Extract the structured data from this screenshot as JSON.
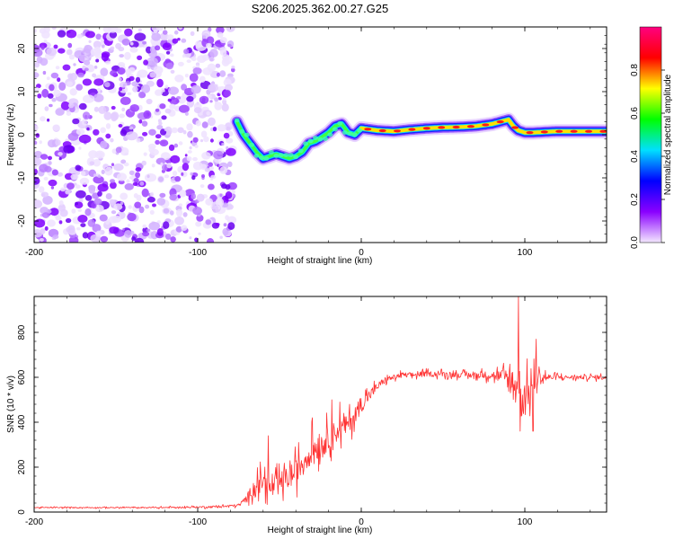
{
  "title": "S206.2025.362.00.27.G25",
  "chart_data": [
    {
      "type": "heatmap",
      "title": "",
      "xlabel": "Height of straight line (km)",
      "ylabel": "Frequency (Hz)",
      "xlim": [
        -200,
        150
      ],
      "ylim": [
        -25,
        25
      ],
      "xticks": [
        -200,
        -100,
        0,
        100
      ],
      "yticks": [
        -20,
        -10,
        0,
        10,
        20
      ],
      "noise_region_x": [
        -200,
        -78
      ],
      "ridge": {
        "x": [
          -76,
          -72,
          -68,
          -64,
          -60,
          -56,
          -52,
          -48,
          -44,
          -40,
          -36,
          -32,
          -28,
          -24,
          -20,
          -16,
          -12,
          -8,
          -4,
          0,
          10,
          20,
          30,
          40,
          50,
          60,
          70,
          80,
          85,
          90,
          93,
          96,
          100,
          105,
          110,
          120,
          130,
          140,
          150
        ],
        "y": [
          3,
          0,
          -2,
          -4,
          -5.5,
          -5,
          -4.5,
          -5,
          -5.5,
          -5,
          -4,
          -2,
          -1.5,
          -0.5,
          0.5,
          2,
          2.5,
          0.5,
          0,
          1.5,
          1,
          0.8,
          1.2,
          1.5,
          1.7,
          1.8,
          2,
          2.5,
          3,
          3.5,
          2,
          1,
          0.5,
          0.5,
          0.6,
          0.8,
          0.8,
          0.8,
          0.8
        ],
        "peak_amplitude_from_x": 0
      },
      "colorbar": {
        "label": "Normalized spectral amplitude",
        "range": [
          0,
          1
        ],
        "ticks": [
          "0.0",
          "0.2",
          "0.4",
          "0.6",
          "0.8"
        ],
        "colors": [
          "#f4e8ff",
          "#8a00ff",
          "#0000ff",
          "#00e0ff",
          "#00ff00",
          "#ffff00",
          "#ff0000",
          "#ff0080"
        ]
      }
    },
    {
      "type": "line",
      "title": "",
      "xlabel": "Height of straight line (km)",
      "ylabel": "SNR (10 * v/v)",
      "xlim": [
        -200,
        150
      ],
      "ylim": [
        0,
        960
      ],
      "xticks": [
        -200,
        -100,
        0,
        100
      ],
      "yticks": [
        0,
        200,
        400,
        600,
        800
      ],
      "color": "#ff3333",
      "series": [
        {
          "name": "SNR",
          "x": [
            -200,
            -180,
            -160,
            -140,
            -120,
            -100,
            -85,
            -75,
            -70,
            -65,
            -60,
            -55,
            -50,
            -45,
            -40,
            -35,
            -30,
            -25,
            -20,
            -15,
            -10,
            -5,
            0,
            5,
            10,
            15,
            20,
            25,
            30,
            40,
            50,
            60,
            70,
            80,
            88,
            92,
            95,
            97,
            100,
            104,
            108,
            115,
            125,
            135,
            150
          ],
          "y": [
            20,
            20,
            20,
            20,
            20,
            22,
            25,
            30,
            60,
            120,
            140,
            100,
            130,
            150,
            180,
            230,
            280,
            300,
            330,
            360,
            380,
            420,
            480,
            520,
            560,
            590,
            600,
            610,
            610,
            615,
            615,
            610,
            610,
            610,
            600,
            580,
            560,
            520,
            500,
            560,
            600,
            600,
            600,
            600,
            600
          ],
          "amplitude": [
            5,
            5,
            5,
            5,
            6,
            8,
            10,
            12,
            40,
            80,
            100,
            90,
            100,
            110,
            120,
            130,
            130,
            130,
            120,
            110,
            100,
            90,
            80,
            60,
            40,
            30,
            25,
            25,
            25,
            25,
            25,
            25,
            30,
            40,
            80,
            160,
            260,
            280,
            180,
            140,
            80,
            30,
            20,
            20,
            20
          ],
          "spikes": [
            {
              "x": -57,
              "y": 340
            },
            {
              "x": -30,
              "y": 420
            },
            {
              "x": -18,
              "y": 500
            },
            {
              "x": -13,
              "y": 490
            },
            {
              "x": 96,
              "y": 960
            },
            {
              "x": 97,
              "y": 360
            },
            {
              "x": 107,
              "y": 770
            },
            {
              "x": 105,
              "y": 360
            }
          ]
        }
      ]
    }
  ]
}
